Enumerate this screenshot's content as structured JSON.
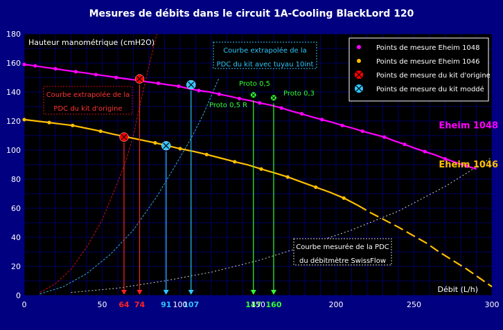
{
  "colors": {
    "background": "#000080",
    "plot_bg": "#000000",
    "grid": "#000080",
    "axis_text": "#ffffff",
    "title_text": "#ffffff",
    "eheim1048": "#ff00ff",
    "eheim1046": "#ffc000",
    "origin_marker": "#ff0000",
    "modded_marker": "#2fc6ff",
    "proto_marker": "#33ff33",
    "swissflow_curve": "#cfd0d4",
    "origin_curve": "#cc1111",
    "modded_curve": "#2fa9e6"
  },
  "chart_data": {
    "type": "line",
    "title": "Mesures de débits dans le circuit 1A-Cooling BlackLord 120",
    "ylabel": "Hauteur manométrique (cmH2O)",
    "xlabel": "Débit (L/h)",
    "xlim": [
      0,
      300
    ],
    "ylim": [
      0,
      180
    ],
    "xticks": [
      0,
      50,
      100,
      150,
      200,
      250,
      300
    ],
    "yticks": [
      0,
      20,
      40,
      60,
      80,
      100,
      120,
      140,
      160,
      180
    ],
    "grid": true,
    "legend_position": "top-right",
    "legend": [
      {
        "label": "Points de mesure Eheim 1048",
        "marker": "dot",
        "color": "#ff00ff"
      },
      {
        "label": "Points de mesure Eheim 1046",
        "marker": "dot",
        "color": "#ffc000"
      },
      {
        "label": "Points de mesure du kit d'origine",
        "marker": "cross-circle",
        "color": "#ff0000"
      },
      {
        "label": "Points de mesure du kit moddé",
        "marker": "cross-circle",
        "color": "#2fc6ff"
      }
    ],
    "series": [
      {
        "name": "Eheim 1048",
        "color": "#ff00ff",
        "label_at": [
          285,
          115
        ],
        "x": [
          0,
          7,
          13,
          20,
          26,
          33,
          40,
          46,
          53,
          59,
          66,
          73,
          79,
          86,
          92,
          99,
          105,
          112,
          119,
          125,
          132,
          138,
          145,
          151,
          158,
          165,
          171,
          178,
          184,
          191,
          198,
          204,
          211,
          217,
          224,
          231,
          237,
          244,
          250,
          257,
          264,
          270,
          277,
          284,
          290
        ],
        "values": [
          159,
          158,
          157,
          156,
          155,
          154,
          153,
          152,
          151,
          150,
          149,
          148,
          147,
          146,
          145,
          144,
          142.5,
          141,
          140,
          138.5,
          137,
          135.5,
          134,
          132.5,
          131,
          129,
          127,
          125,
          123,
          121,
          119,
          117,
          115,
          113,
          111,
          109,
          106.5,
          104,
          101.5,
          99,
          96.5,
          94,
          91.5,
          89,
          87
        ]
      },
      {
        "name": "Eheim 1046",
        "color": "#ffc000",
        "label_at": [
          285,
          88
        ],
        "x": [
          0,
          8,
          16,
          23,
          31,
          40,
          49,
          57,
          66,
          75,
          84,
          92,
          100,
          109,
          117,
          126,
          135,
          143,
          152,
          160,
          169,
          178,
          187,
          196,
          205,
          214,
          222,
          231,
          240,
          249,
          258,
          266,
          275,
          284,
          292,
          300
        ],
        "values": [
          121,
          120,
          119,
          118,
          117,
          115,
          113,
          111,
          109,
          107,
          105,
          103,
          101,
          99,
          97,
          94.5,
          92,
          90,
          87,
          84.5,
          81.5,
          78,
          74.5,
          71,
          67,
          62,
          57,
          52,
          47,
          41.5,
          36,
          30,
          24,
          18,
          12,
          6
        ]
      },
      {
        "name": "Courbe extrapolée de la PDC du kit d'origine",
        "color": "#cc1111",
        "x": [
          10,
          20,
          30,
          40,
          50,
          60,
          65,
          70,
          74,
          80,
          85
        ],
        "values": [
          2,
          8,
          18,
          33,
          52,
          78,
          92,
          110,
          130,
          158,
          180
        ]
      },
      {
        "name": "Courbe extrapolée de la PDC du kit avec tuyau 10int",
        "color": "#2fa9e6",
        "x": [
          10,
          25,
          40,
          55,
          70,
          85,
          95,
          107,
          115,
          125
        ],
        "values": [
          1,
          6,
          15,
          28,
          45,
          68,
          86,
          108,
          125,
          150
        ]
      },
      {
        "name": "Courbe mesurée de la PDC du débitmètre SwissFlow",
        "color": "#cfd0d4",
        "x": [
          30,
          60,
          90,
          120,
          150,
          180,
          210,
          240,
          270,
          300
        ],
        "values": [
          2,
          5,
          10,
          16,
          24,
          34,
          45,
          58,
          75,
          95
        ]
      }
    ],
    "measurement_points": {
      "origin": [
        {
          "x": 64,
          "y": 109
        },
        {
          "x": 74,
          "y": 149
        }
      ],
      "modded": [
        {
          "x": 91,
          "y": 103
        },
        {
          "x": 107,
          "y": 145
        }
      ],
      "proto": [
        {
          "x": 147,
          "y": 138
        },
        {
          "x": 160,
          "y": 136
        }
      ]
    },
    "flow_markers": [
      {
        "value": "64",
        "color": "#ff2222",
        "y": 109
      },
      {
        "value": "74",
        "color": "#ff2222",
        "y": 149
      },
      {
        "value": "91",
        "color": "#2fc6ff",
        "y": 103
      },
      {
        "value": "107",
        "color": "#2fc6ff",
        "y": 145
      },
      {
        "value": "147",
        "color": "#33ff33",
        "y": 138
      },
      {
        "value": "160",
        "color": "#33ff33",
        "y": 136
      }
    ],
    "annotations": {
      "origin_box": [
        "Courbe extrapolée de la",
        "PDC du kit d'origine"
      ],
      "modded_box": [
        "Courbe extrapolée de la",
        "PDC du kit avec tuyau 10int"
      ],
      "swissflow_box": [
        "Courbe mesurée de la PDC",
        "du débitmètre SwissFlow"
      ],
      "proto_05": "Proto 0,5",
      "proto_05r": "Proto 0,5 R",
      "proto_03": "Proto 0,3"
    }
  }
}
